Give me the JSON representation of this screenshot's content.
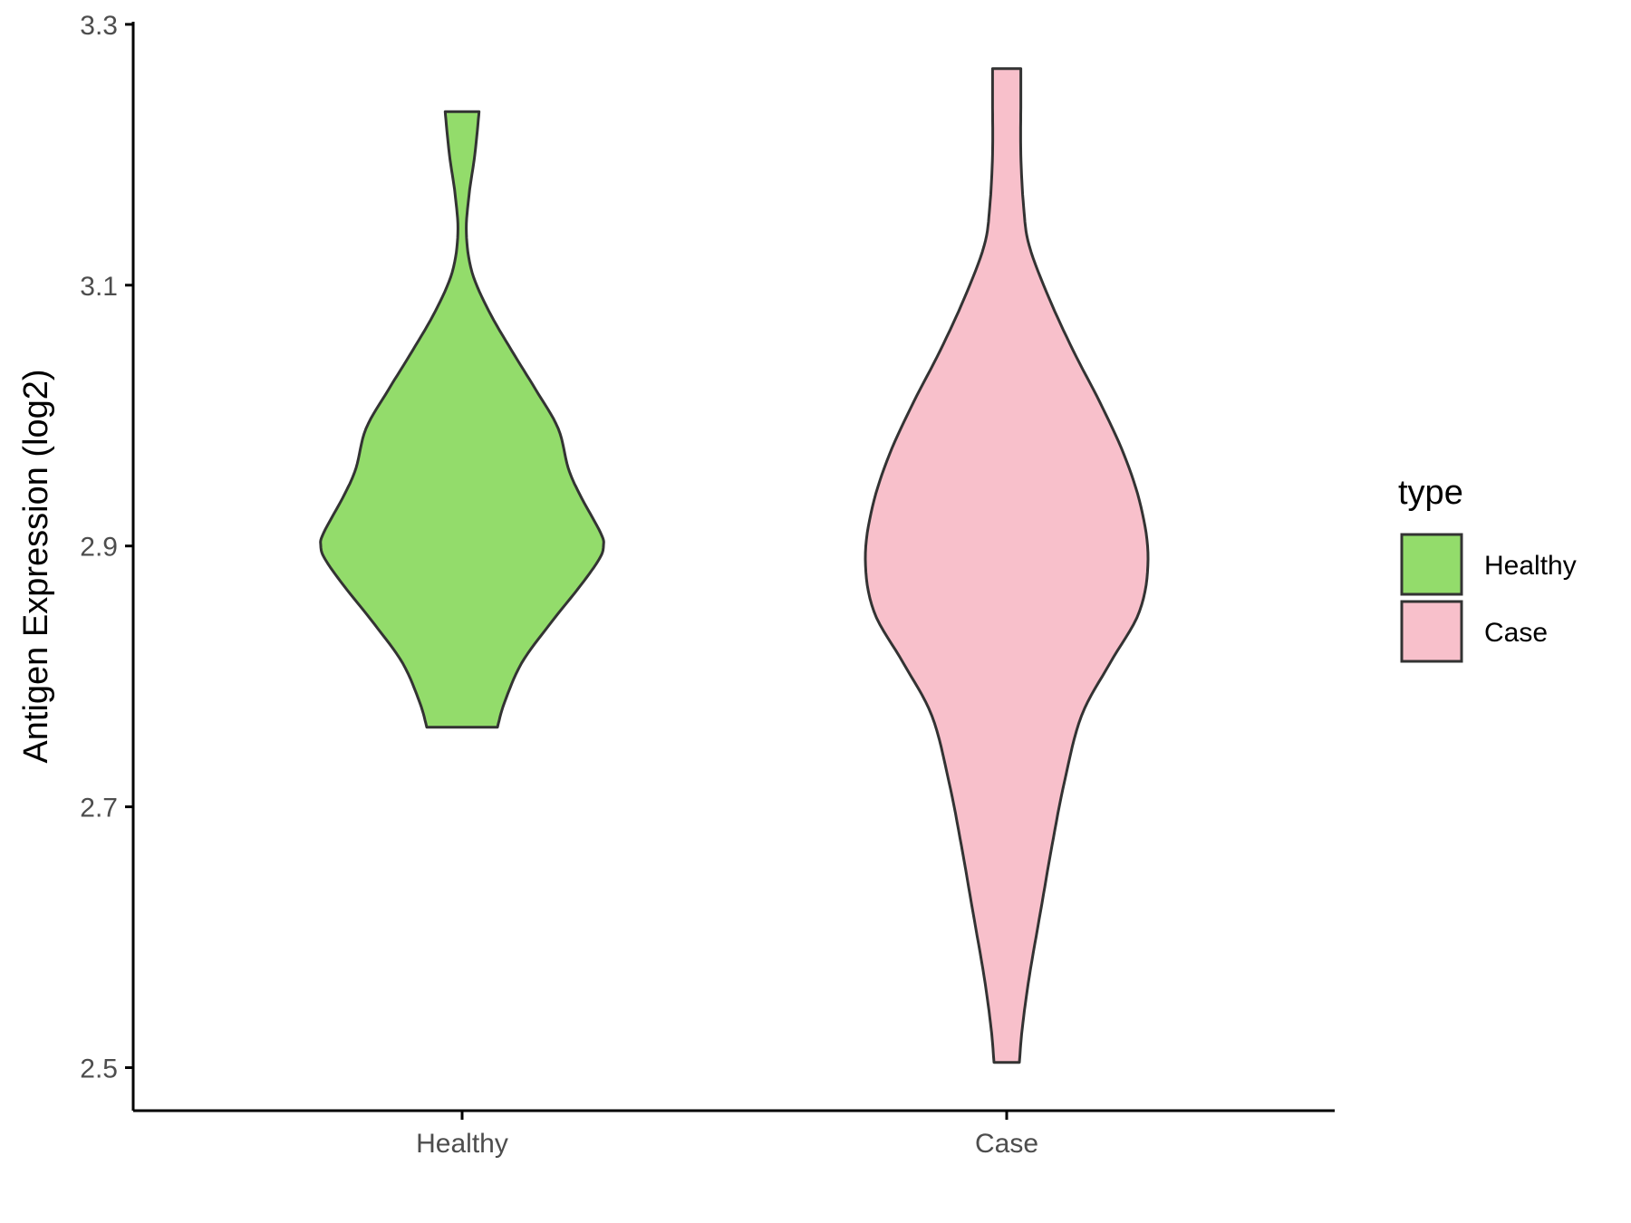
{
  "chart_data": {
    "type": "violin",
    "title": "",
    "xlabel": "",
    "ylabel": "Antigen Expression (log2)",
    "ylim": [
      2.467,
      3.302
    ],
    "yticks": [
      "2.5",
      "2.7",
      "2.9",
      "3.1",
      "3.3"
    ],
    "categories": [
      "Healthy",
      "Case"
    ],
    "grid": false,
    "legend": {
      "title": "type",
      "position": "right",
      "entries": [
        {
          "label": "Healthy",
          "color": "#93DC6B"
        },
        {
          "label": "Case",
          "color": "#F8C0CB"
        }
      ]
    },
    "series": [
      {
        "category": "Healthy",
        "color": "#93DC6B",
        "min": 2.761,
        "max": 3.233,
        "density_profile": [
          [
            2.761,
            0.25
          ],
          [
            2.78,
            0.3
          ],
          [
            2.81,
            0.42
          ],
          [
            2.84,
            0.62
          ],
          [
            2.87,
            0.84
          ],
          [
            2.89,
            0.97
          ],
          [
            2.9,
            1.0
          ],
          [
            2.91,
            0.98
          ],
          [
            2.94,
            0.83
          ],
          [
            2.96,
            0.75
          ],
          [
            2.99,
            0.68
          ],
          [
            3.02,
            0.52
          ],
          [
            3.05,
            0.35
          ],
          [
            3.08,
            0.19
          ],
          [
            3.11,
            0.07
          ],
          [
            3.14,
            0.03
          ],
          [
            3.17,
            0.05
          ],
          [
            3.2,
            0.09
          ],
          [
            3.233,
            0.12
          ]
        ]
      },
      {
        "category": "Case",
        "color": "#F8C0CB",
        "min": 2.504,
        "max": 3.266,
        "density_profile": [
          [
            2.504,
            0.09
          ],
          [
            2.53,
            0.11
          ],
          [
            2.57,
            0.16
          ],
          [
            2.62,
            0.24
          ],
          [
            2.67,
            0.32
          ],
          [
            2.72,
            0.41
          ],
          [
            2.77,
            0.53
          ],
          [
            2.81,
            0.73
          ],
          [
            2.85,
            0.94
          ],
          [
            2.89,
            1.0
          ],
          [
            2.93,
            0.95
          ],
          [
            2.97,
            0.83
          ],
          [
            3.01,
            0.66
          ],
          [
            3.05,
            0.47
          ],
          [
            3.09,
            0.3
          ],
          [
            3.13,
            0.16
          ],
          [
            3.16,
            0.12
          ],
          [
            3.2,
            0.1
          ],
          [
            3.24,
            0.1
          ],
          [
            3.266,
            0.1
          ]
        ]
      }
    ]
  }
}
